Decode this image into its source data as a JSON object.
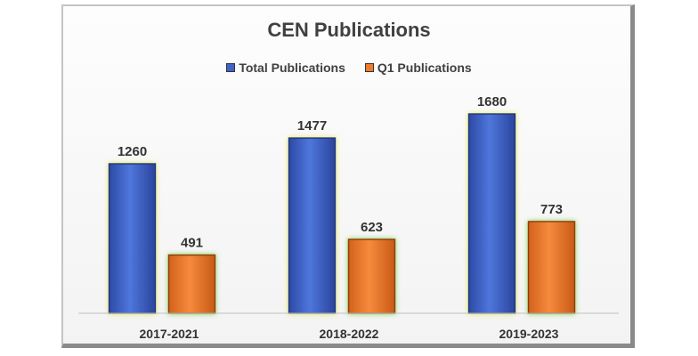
{
  "chart_data": {
    "type": "bar",
    "title": "CEN Publications",
    "categories": [
      "2017-2021",
      "2018-2022",
      "2019-2023"
    ],
    "series": [
      {
        "name": "Total Publications",
        "values": [
          1260,
          1477,
          1680
        ],
        "color": "#3f63c8"
      },
      {
        "name": "Q1 Publications",
        "values": [
          491,
          623,
          773
        ],
        "color": "#f07a2c"
      }
    ],
    "xlabel": "",
    "ylabel": "",
    "ylim": [
      0,
      1800
    ],
    "grid": false,
    "legend_position": "top",
    "colors": {
      "glow_total": "#e7ec6a",
      "glow_q1": "#8fd65c"
    }
  }
}
